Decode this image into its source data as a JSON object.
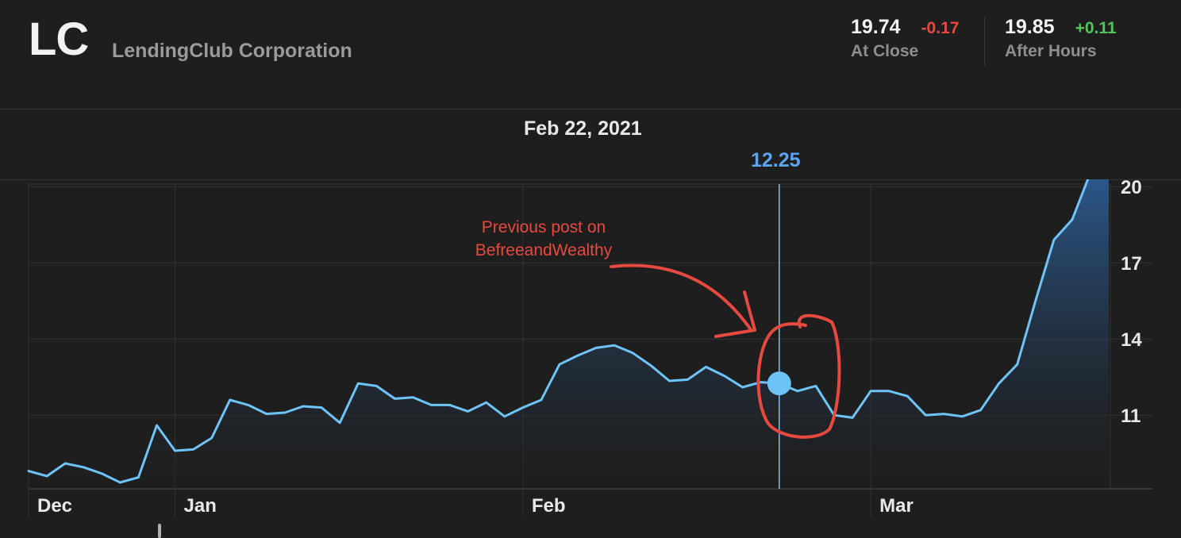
{
  "header": {
    "ticker": "LC",
    "company": "LendingClub Corporation",
    "close": {
      "price": "19.74",
      "change": "-0.17",
      "label": "At Close"
    },
    "after_hours": {
      "price": "19.85",
      "change": "+0.11",
      "label": "After Hours"
    }
  },
  "selection": {
    "date": "Feb 22, 2021",
    "value": "12.25"
  },
  "annotation": {
    "line1": "Previous post on",
    "line2": "BefreeandWealthy"
  },
  "colors": {
    "background": "#1e1e1e",
    "line": "#6ec3f7",
    "fill_top": "#2c5c93",
    "marker": "#6ec3f7",
    "crosshair": "#6ec3f7",
    "annotation": "#e6493f",
    "negative": "#e6493f",
    "positive": "#4fc65b"
  },
  "chart_data": {
    "type": "area",
    "y_ticks": [
      "20",
      "17",
      "14",
      "11"
    ],
    "y_tick_values": [
      20,
      17,
      14,
      11
    ],
    "ylim": [
      8.1,
      20.1
    ],
    "x_tick_labels": [
      "Dec",
      "Jan",
      "Feb",
      "Mar"
    ],
    "x_tick_indices": [
      0,
      8,
      27,
      46
    ],
    "grid": true,
    "selected_index": 41,
    "series": [
      {
        "values": [
          8.8,
          8.6,
          9.1,
          8.95,
          8.7,
          8.35,
          8.55,
          10.6,
          9.6,
          9.65,
          10.1,
          11.6,
          11.4,
          11.05,
          11.1,
          11.35,
          11.3,
          10.7,
          12.25,
          12.15,
          11.65,
          11.7,
          11.4,
          11.4,
          11.15,
          11.5,
          10.95,
          11.3,
          11.6,
          13.0,
          13.35,
          13.65,
          13.75,
          13.45,
          12.95,
          12.35,
          12.4,
          12.9,
          12.55,
          12.1,
          12.3,
          12.25,
          11.95,
          12.15,
          11.0,
          10.9,
          11.95,
          11.95,
          11.75,
          11.0,
          11.05,
          10.95,
          11.2,
          12.25,
          13.0,
          15.5,
          17.9,
          18.7,
          20.55,
          20.35
        ]
      }
    ]
  }
}
